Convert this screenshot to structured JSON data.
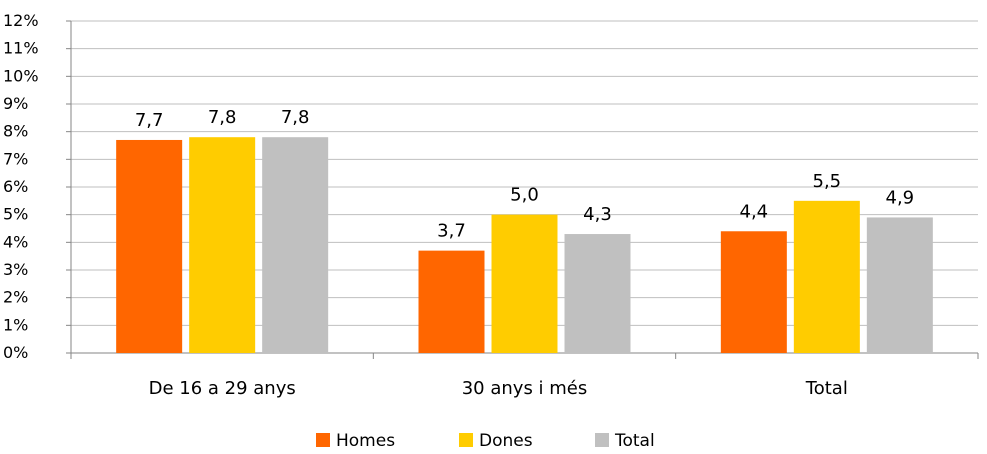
{
  "chart_data": {
    "type": "bar",
    "title": "",
    "xlabel": "",
    "ylabel": "",
    "ylim": [
      0,
      12
    ],
    "yticks": [
      "0%",
      "1%",
      "2%",
      "3%",
      "4%",
      "5%",
      "6%",
      "7%",
      "8%",
      "9%",
      "10%",
      "11%",
      "12%"
    ],
    "grid": true,
    "categories": [
      "De 16 a 29 anys",
      "30 anys i més",
      "Total"
    ],
    "series": [
      {
        "name": "Homes",
        "color": "#ff6600",
        "values": [
          7.7,
          3.7,
          4.4
        ],
        "labels": [
          "7,7",
          "3,7",
          "4,4"
        ]
      },
      {
        "name": "Dones",
        "color": "#ffcc00",
        "values": [
          7.8,
          5.0,
          5.5
        ],
        "labels": [
          "7,8",
          "5,0",
          "5,5"
        ]
      },
      {
        "name": "Total",
        "color": "#c0c0c0",
        "values": [
          7.8,
          4.3,
          4.9
        ],
        "labels": [
          "7,8",
          "4,3",
          "4,9"
        ]
      }
    ],
    "legend_position": "bottom-center"
  }
}
